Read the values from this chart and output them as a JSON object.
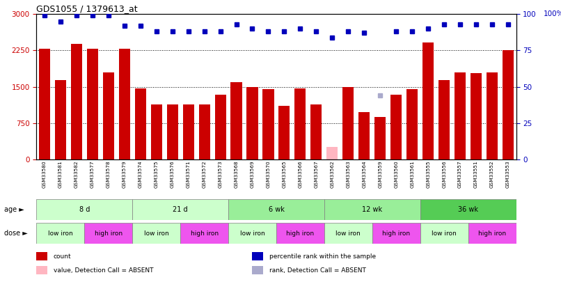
{
  "title": "GDS1055 / 1379613_at",
  "samples": [
    "GSM33580",
    "GSM33581",
    "GSM33582",
    "GSM33577",
    "GSM33578",
    "GSM33579",
    "GSM33574",
    "GSM33575",
    "GSM33576",
    "GSM33571",
    "GSM33572",
    "GSM33573",
    "GSM33568",
    "GSM33569",
    "GSM33570",
    "GSM33565",
    "GSM33566",
    "GSM33567",
    "GSM33562",
    "GSM33563",
    "GSM33564",
    "GSM33559",
    "GSM33560",
    "GSM33561",
    "GSM33555",
    "GSM33556",
    "GSM33557",
    "GSM33551",
    "GSM33552",
    "GSM33553"
  ],
  "counts": [
    2290,
    1640,
    2390,
    2280,
    1790,
    2280,
    1460,
    1130,
    1130,
    1130,
    1130,
    1330,
    1600,
    1490,
    1450,
    1110,
    1470,
    1140,
    250,
    1490,
    980,
    880,
    1330,
    1450,
    2410,
    1640,
    1800,
    1780,
    1800,
    2260
  ],
  "absent_bar_indices": [
    18
  ],
  "absent_rank_indices": [
    21
  ],
  "percentile_ranks": [
    99,
    95,
    99,
    99,
    99,
    92,
    92,
    88,
    88,
    88,
    88,
    88,
    93,
    90,
    88,
    88,
    90,
    88,
    84,
    88,
    87,
    44,
    88,
    88,
    90,
    93,
    93,
    93,
    93,
    93
  ],
  "ylim_left": [
    0,
    3000
  ],
  "ylim_right": [
    0,
    100
  ],
  "yticks_left": [
    0,
    750,
    1500,
    2250,
    3000
  ],
  "yticks_right": [
    0,
    25,
    50,
    75,
    100
  ],
  "bar_color": "#CC0000",
  "absent_bar_color": "#FFB6C1",
  "rank_color": "#0000BB",
  "absent_rank_color": "#AAAACC",
  "age_groups": [
    {
      "label": "8 d",
      "start": 0,
      "end": 6,
      "color": "#CCFFCC"
    },
    {
      "label": "21 d",
      "start": 6,
      "end": 12,
      "color": "#CCFFCC"
    },
    {
      "label": "6 wk",
      "start": 12,
      "end": 18,
      "color": "#99EE99"
    },
    {
      "label": "12 wk",
      "start": 18,
      "end": 24,
      "color": "#99EE99"
    },
    {
      "label": "36 wk",
      "start": 24,
      "end": 30,
      "color": "#55CC55"
    }
  ],
  "dose_groups": [
    {
      "label": "low iron",
      "start": 0,
      "end": 3,
      "color": "#CCFFCC"
    },
    {
      "label": "high iron",
      "start": 3,
      "end": 6,
      "color": "#EE55EE"
    },
    {
      "label": "low iron",
      "start": 6,
      "end": 9,
      "color": "#CCFFCC"
    },
    {
      "label": "high iron",
      "start": 9,
      "end": 12,
      "color": "#EE55EE"
    },
    {
      "label": "low iron",
      "start": 12,
      "end": 15,
      "color": "#CCFFCC"
    },
    {
      "label": "high iron",
      "start": 15,
      "end": 18,
      "color": "#EE55EE"
    },
    {
      "label": "low iron",
      "start": 18,
      "end": 21,
      "color": "#CCFFCC"
    },
    {
      "label": "high iron",
      "start": 21,
      "end": 24,
      "color": "#EE55EE"
    },
    {
      "label": "low iron",
      "start": 24,
      "end": 27,
      "color": "#CCFFCC"
    },
    {
      "label": "high iron",
      "start": 27,
      "end": 30,
      "color": "#EE55EE"
    }
  ],
  "legend_items": [
    {
      "label": "count",
      "color": "#CC0000"
    },
    {
      "label": "percentile rank within the sample",
      "color": "#0000BB"
    },
    {
      "label": "value, Detection Call = ABSENT",
      "color": "#FFB6C1"
    },
    {
      "label": "rank, Detection Call = ABSENT",
      "color": "#AAAACC"
    }
  ]
}
